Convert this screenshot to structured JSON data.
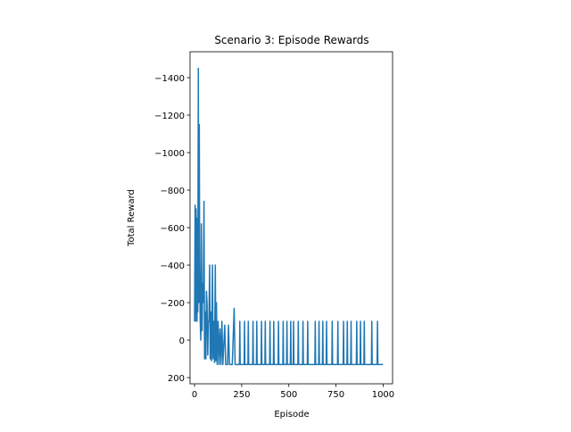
{
  "chart_data": {
    "type": "line",
    "title": "Scenario 3: Episode Rewards",
    "xlabel": "Episode",
    "ylabel": "Total Reward",
    "xlim": [
      -24,
      1050
    ],
    "ylim": [
      233,
      -1538
    ],
    "xticks": [
      0,
      250,
      500,
      750,
      1000
    ],
    "yticks": [
      {
        "value": -1400,
        "label": "−1400"
      },
      {
        "value": -1200,
        "label": "−1200"
      },
      {
        "value": -1000,
        "label": "−1000"
      },
      {
        "value": -800,
        "label": "−800"
      },
      {
        "value": -600,
        "label": "−600"
      },
      {
        "value": -400,
        "label": "−400"
      },
      {
        "value": -200,
        "label": "−200"
      },
      0,
      200
    ],
    "color": "#1f77b4",
    "x": [
      0,
      3,
      5,
      8,
      10,
      13,
      15,
      17,
      20,
      22,
      25,
      27,
      30,
      33,
      36,
      40,
      43,
      46,
      50,
      53,
      56,
      60,
      63,
      66,
      70,
      73,
      76,
      80,
      83,
      86,
      90,
      95,
      98,
      103,
      106,
      110,
      113,
      116,
      120,
      125,
      130,
      135,
      140,
      145,
      150,
      160,
      165,
      175,
      180,
      185,
      200,
      210,
      215,
      238,
      240,
      242,
      263,
      265,
      267,
      283,
      285,
      287,
      308,
      310,
      312,
      328,
      330,
      332,
      353,
      355,
      357,
      373,
      375,
      377,
      398,
      400,
      402,
      418,
      420,
      422,
      443,
      445,
      447,
      468,
      470,
      472,
      488,
      490,
      492,
      508,
      510,
      512,
      523,
      525,
      527,
      548,
      550,
      552,
      573,
      575,
      577,
      598,
      600,
      602,
      638,
      640,
      642,
      658,
      660,
      662,
      678,
      680,
      682,
      698,
      700,
      702,
      728,
      730,
      732,
      758,
      760,
      762,
      788,
      790,
      792,
      808,
      810,
      812,
      828,
      830,
      832,
      858,
      860,
      862,
      878,
      880,
      882,
      898,
      900,
      902,
      938,
      940,
      942,
      968,
      970,
      972,
      999
    ],
    "values": [
      -100,
      -720,
      -100,
      -700,
      -300,
      -100,
      -650,
      -150,
      -1450,
      -200,
      -1150,
      -400,
      -100,
      0,
      -620,
      -50,
      -300,
      -200,
      -740,
      100,
      -150,
      100,
      -260,
      -200,
      80,
      -100,
      -100,
      -400,
      100,
      -150,
      110,
      -400,
      100,
      -100,
      120,
      -400,
      110,
      -200,
      130,
      -100,
      130,
      -60,
      130,
      -100,
      130,
      -80,
      130,
      130,
      -80,
      130,
      130,
      -170,
      130,
      130,
      -100,
      130,
      130,
      -100,
      130,
      130,
      -100,
      130,
      130,
      -100,
      130,
      130,
      -100,
      130,
      130,
      -100,
      130,
      130,
      -100,
      130,
      130,
      -100,
      130,
      130,
      -100,
      130,
      130,
      -100,
      130,
      130,
      -100,
      130,
      130,
      -100,
      130,
      130,
      -100,
      130,
      130,
      -100,
      130,
      130,
      -100,
      130,
      130,
      -100,
      130,
      130,
      -100,
      130,
      130,
      -100,
      130,
      130,
      -100,
      130,
      130,
      -100,
      130,
      130,
      -100,
      130,
      130,
      -100,
      130,
      130,
      -100,
      130,
      130,
      -100,
      130,
      130,
      -100,
      130,
      130,
      -100,
      130,
      130,
      -100,
      130,
      130,
      -100,
      130,
      130,
      -100,
      130,
      130,
      -100,
      130,
      130,
      -100,
      130,
      130
    ]
  }
}
